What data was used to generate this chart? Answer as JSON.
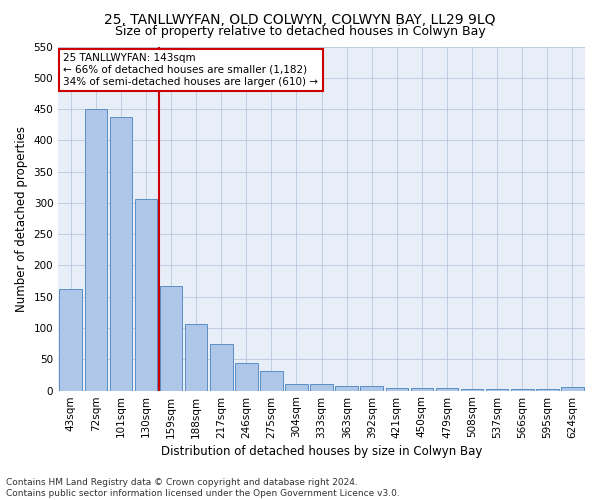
{
  "title": "25, TANLLWYFAN, OLD COLWYN, COLWYN BAY, LL29 9LQ",
  "subtitle": "Size of property relative to detached houses in Colwyn Bay",
  "xlabel": "Distribution of detached houses by size in Colwyn Bay",
  "ylabel": "Number of detached properties",
  "categories": [
    "43sqm",
    "72sqm",
    "101sqm",
    "130sqm",
    "159sqm",
    "188sqm",
    "217sqm",
    "246sqm",
    "275sqm",
    "304sqm",
    "333sqm",
    "363sqm",
    "392sqm",
    "421sqm",
    "450sqm",
    "479sqm",
    "508sqm",
    "537sqm",
    "566sqm",
    "595sqm",
    "624sqm"
  ],
  "values": [
    163,
    450,
    438,
    306,
    167,
    106,
    74,
    44,
    32,
    10,
    10,
    7,
    7,
    4,
    4,
    4,
    3,
    3,
    3,
    3,
    5
  ],
  "bar_color": "#aec6e8",
  "bar_edge_color": "#5a8fc4",
  "vline_x": 3.5,
  "vline_color": "#cc0000",
  "annotation_text": "25 TANLLWYFAN: 143sqm\n← 66% of detached houses are smaller (1,182)\n34% of semi-detached houses are larger (610) →",
  "annotation_box_color": "#ffffff",
  "annotation_box_edge_color": "#cc0000",
  "ylim": [
    0,
    550
  ],
  "yticks": [
    0,
    50,
    100,
    150,
    200,
    250,
    300,
    350,
    400,
    450,
    500,
    550
  ],
  "plot_bg_color": "#e8eef8",
  "footer": "Contains HM Land Registry data © Crown copyright and database right 2024.\nContains public sector information licensed under the Open Government Licence v3.0.",
  "title_fontsize": 10,
  "subtitle_fontsize": 9,
  "xlabel_fontsize": 8.5,
  "ylabel_fontsize": 8.5,
  "tick_fontsize": 7.5,
  "footer_fontsize": 6.5
}
